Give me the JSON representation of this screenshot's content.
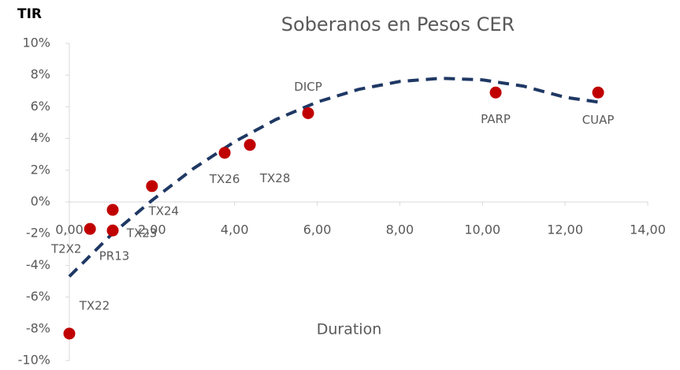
{
  "chart_data": {
    "type": "scatter",
    "title": "Soberanos en Pesos CER",
    "ylabel": "TIR",
    "xlabel": "Duration",
    "xlim": [
      0,
      14
    ],
    "xticks": [
      {
        "value": 0,
        "label": "0,00"
      },
      {
        "value": 2,
        "label": "2,00"
      },
      {
        "value": 4,
        "label": "4,00"
      },
      {
        "value": 6,
        "label": "6,00"
      },
      {
        "value": 8,
        "label": "8,00"
      },
      {
        "value": 10,
        "label": "10,00"
      },
      {
        "value": 12,
        "label": "12,00"
      },
      {
        "value": 14,
        "label": "14,00"
      }
    ],
    "ylim": [
      -10,
      10
    ],
    "yticks": [
      {
        "value": -10,
        "label": "-10%"
      },
      {
        "value": -8,
        "label": "-8%"
      },
      {
        "value": -6,
        "label": "-6%"
      },
      {
        "value": -4,
        "label": "-4%"
      },
      {
        "value": -2,
        "label": "-2%"
      },
      {
        "value": 0,
        "label": "0%"
      },
      {
        "value": 2,
        "label": "2%"
      },
      {
        "value": 4,
        "label": "4%"
      },
      {
        "value": 6,
        "label": "6%"
      },
      {
        "value": 8,
        "label": "8%"
      },
      {
        "value": 10,
        "label": "10%"
      }
    ],
    "series": [
      {
        "color": "#c00000",
        "point_labels": [
          "TX22",
          "T2X2",
          "PR13",
          "TX23",
          "TX24",
          "TX26",
          "TX28",
          "DICP",
          "PARP",
          "CUAP"
        ],
        "x": [
          0,
          0.5,
          1.05,
          1.05,
          2.0,
          3.76,
          4.37,
          5.78,
          10.32,
          12.8
        ],
        "values": [
          -8.3,
          -1.7,
          -1.8,
          -0.5,
          1.0,
          3.1,
          3.6,
          5.6,
          6.9,
          6.9
        ]
      }
    ],
    "trend": {
      "color": "#1f3864",
      "dashed": true,
      "x": [
        0,
        1,
        2,
        3,
        4,
        5,
        6,
        7,
        8,
        9,
        10,
        11,
        12,
        12.8
      ],
      "values": [
        -4.7,
        -2.1,
        0.1,
        2.1,
        3.8,
        5.2,
        6.3,
        7.1,
        7.6,
        7.8,
        7.7,
        7.3,
        6.6,
        6.3
      ]
    }
  }
}
